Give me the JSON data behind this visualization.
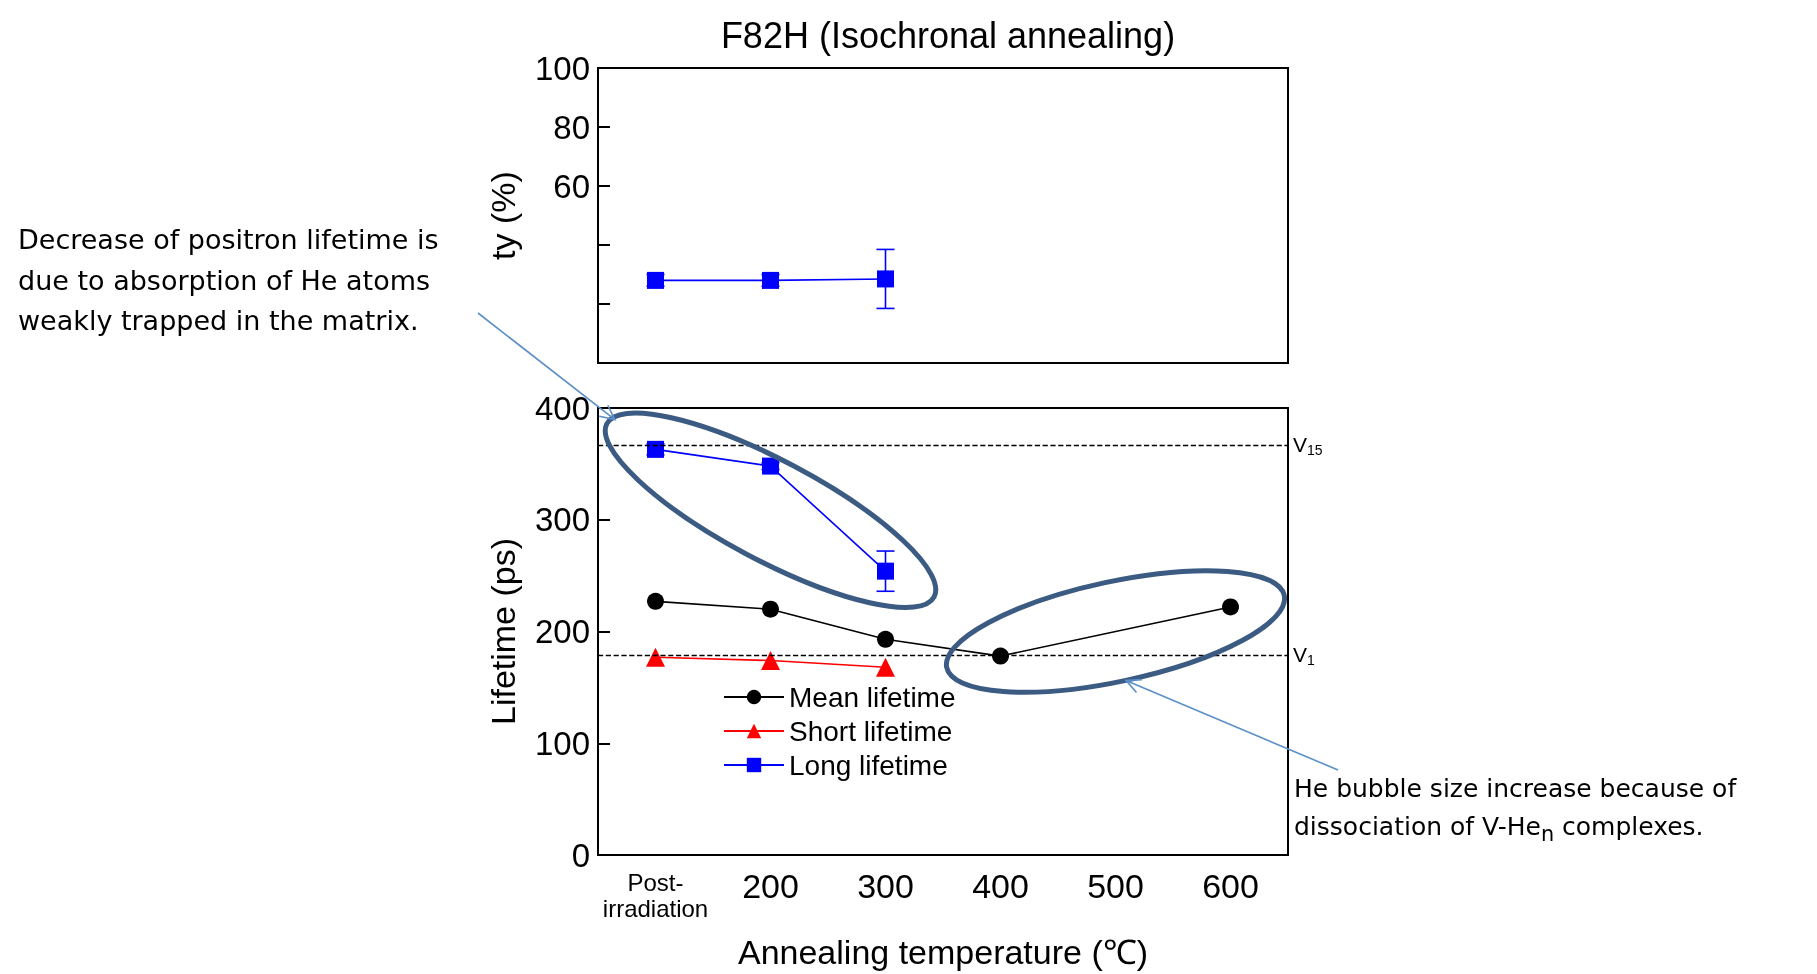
{
  "chart_data": [
    {
      "type": "line",
      "title": "F82H (Isochronal annealing)",
      "ylabel": "ty (%)",
      "categories": [
        null,
        null,
        null,
        null,
        null,
        null
      ],
      "series": [
        {
          "color": "#0000ff",
          "marker": "square",
          "values": [
            28,
            28,
            28.5,
            null,
            null,
            null
          ],
          "errors": [
            2,
            2,
            10,
            null,
            null,
            null
          ]
        }
      ],
      "ylim": [
        0,
        100
      ],
      "yticks": [
        {
          "value": 0,
          "label": null
        },
        {
          "value": 20,
          "label": null
        },
        {
          "value": 40,
          "label": null
        },
        60,
        80,
        100
      ],
      "tick_labels": "y"
    },
    {
      "type": "line",
      "xlabel": "Annealing temperature (℃)",
      "ylabel": "Lifetime (ps)",
      "categories": [
        "Post-irradiation",
        "200",
        "300",
        "400",
        "500",
        "600"
      ],
      "series": [
        {
          "name": "Mean lifetime",
          "color": "#000000",
          "marker": "circle",
          "values": [
            227,
            220,
            193,
            178,
            null,
            222
          ]
        },
        {
          "name": "Short lifetime",
          "color": "#ff0000",
          "marker": "triangle",
          "values": [
            177,
            174,
            168,
            null,
            null,
            null
          ]
        },
        {
          "name": "Long lifetime",
          "color": "#0000ff",
          "marker": "square",
          "values": [
            363,
            348,
            254,
            null,
            null,
            null
          ],
          "errors": [
            5,
            3,
            18,
            null,
            null,
            null
          ]
        }
      ],
      "ylim": [
        0,
        400
      ],
      "yticks": [
        0,
        100,
        200,
        300,
        400
      ],
      "legend": "bottom left",
      "ref_lines": [
        {
          "axis": "y",
          "value": 367,
          "label": "V$_{15}$",
          "line_style": "dashed",
          "color": "#000000"
        },
        {
          "axis": "y",
          "value": 179,
          "label": "V$_{1}$",
          "line_style": "dashed",
          "color": "#000000"
        }
      ],
      "annotations": [
        "Decrease of positron lifetime is due to absorption of He atoms weakly trapped in the matrix.",
        "He bubble size increase because of dissociation of V-He$_{n}$ complexes."
      ]
    }
  ]
}
